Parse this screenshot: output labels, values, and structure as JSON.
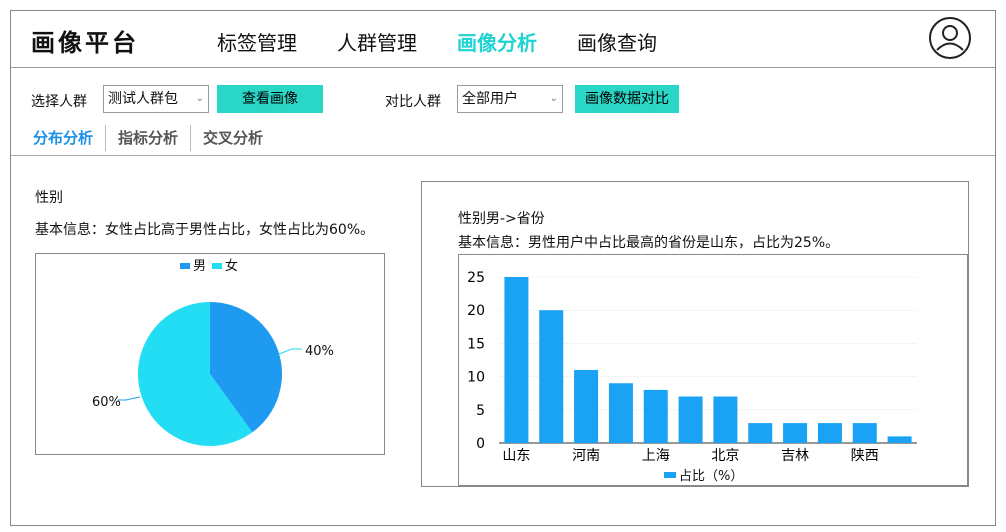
{
  "header": {
    "logo": "画像平台",
    "nav": [
      "标签管理",
      "人群管理",
      "画像分析",
      "画像查询"
    ],
    "active_nav": "画像分析"
  },
  "filters": {
    "select_group_label": "选择人群",
    "select_group_value": "测试人群包",
    "view_button": "查看画像",
    "compare_group_label": "对比人群",
    "compare_group_value": "全部用户",
    "compare_button": "画像数据对比"
  },
  "tabs": [
    "分布分析",
    "指标分析",
    "交叉分析"
  ],
  "left": {
    "title": "性别",
    "info": "基本信息：女性占比高于男性占比，女性占比为60%。"
  },
  "right": {
    "title": "性别男->省份",
    "info": "基本信息：男性用户中占比最高的省份是山东，占比为25%。"
  },
  "colors": {
    "accent": "#1fd3d3",
    "male": "#1e9bf0",
    "female": "#22ddf3",
    "bar": "#1aa3f5",
    "tab_active": "#1a8fe3"
  },
  "chart_data": [
    {
      "type": "pie",
      "legend": [
        "男",
        "女"
      ],
      "values": [
        40,
        60
      ],
      "labels": [
        "40%",
        "60%"
      ],
      "legend_position": "top"
    },
    {
      "type": "bar",
      "categories": [
        "山东",
        "",
        "河南",
        "",
        "上海",
        "",
        "北京",
        "",
        "吉林",
        "",
        "陕西",
        ""
      ],
      "values": [
        25,
        20,
        11,
        9,
        8,
        7,
        7,
        3,
        3,
        3,
        3,
        1
      ],
      "ylim": [
        0,
        25
      ],
      "yticks": [
        "0",
        "5",
        "10",
        "15",
        "20",
        "25"
      ],
      "series": [
        {
          "name": "占比（%）",
          "values": [
            25,
            20,
            11,
            9,
            8,
            7,
            7,
            3,
            3,
            3,
            3,
            1
          ]
        }
      ],
      "legend_position": "bottom"
    }
  ]
}
